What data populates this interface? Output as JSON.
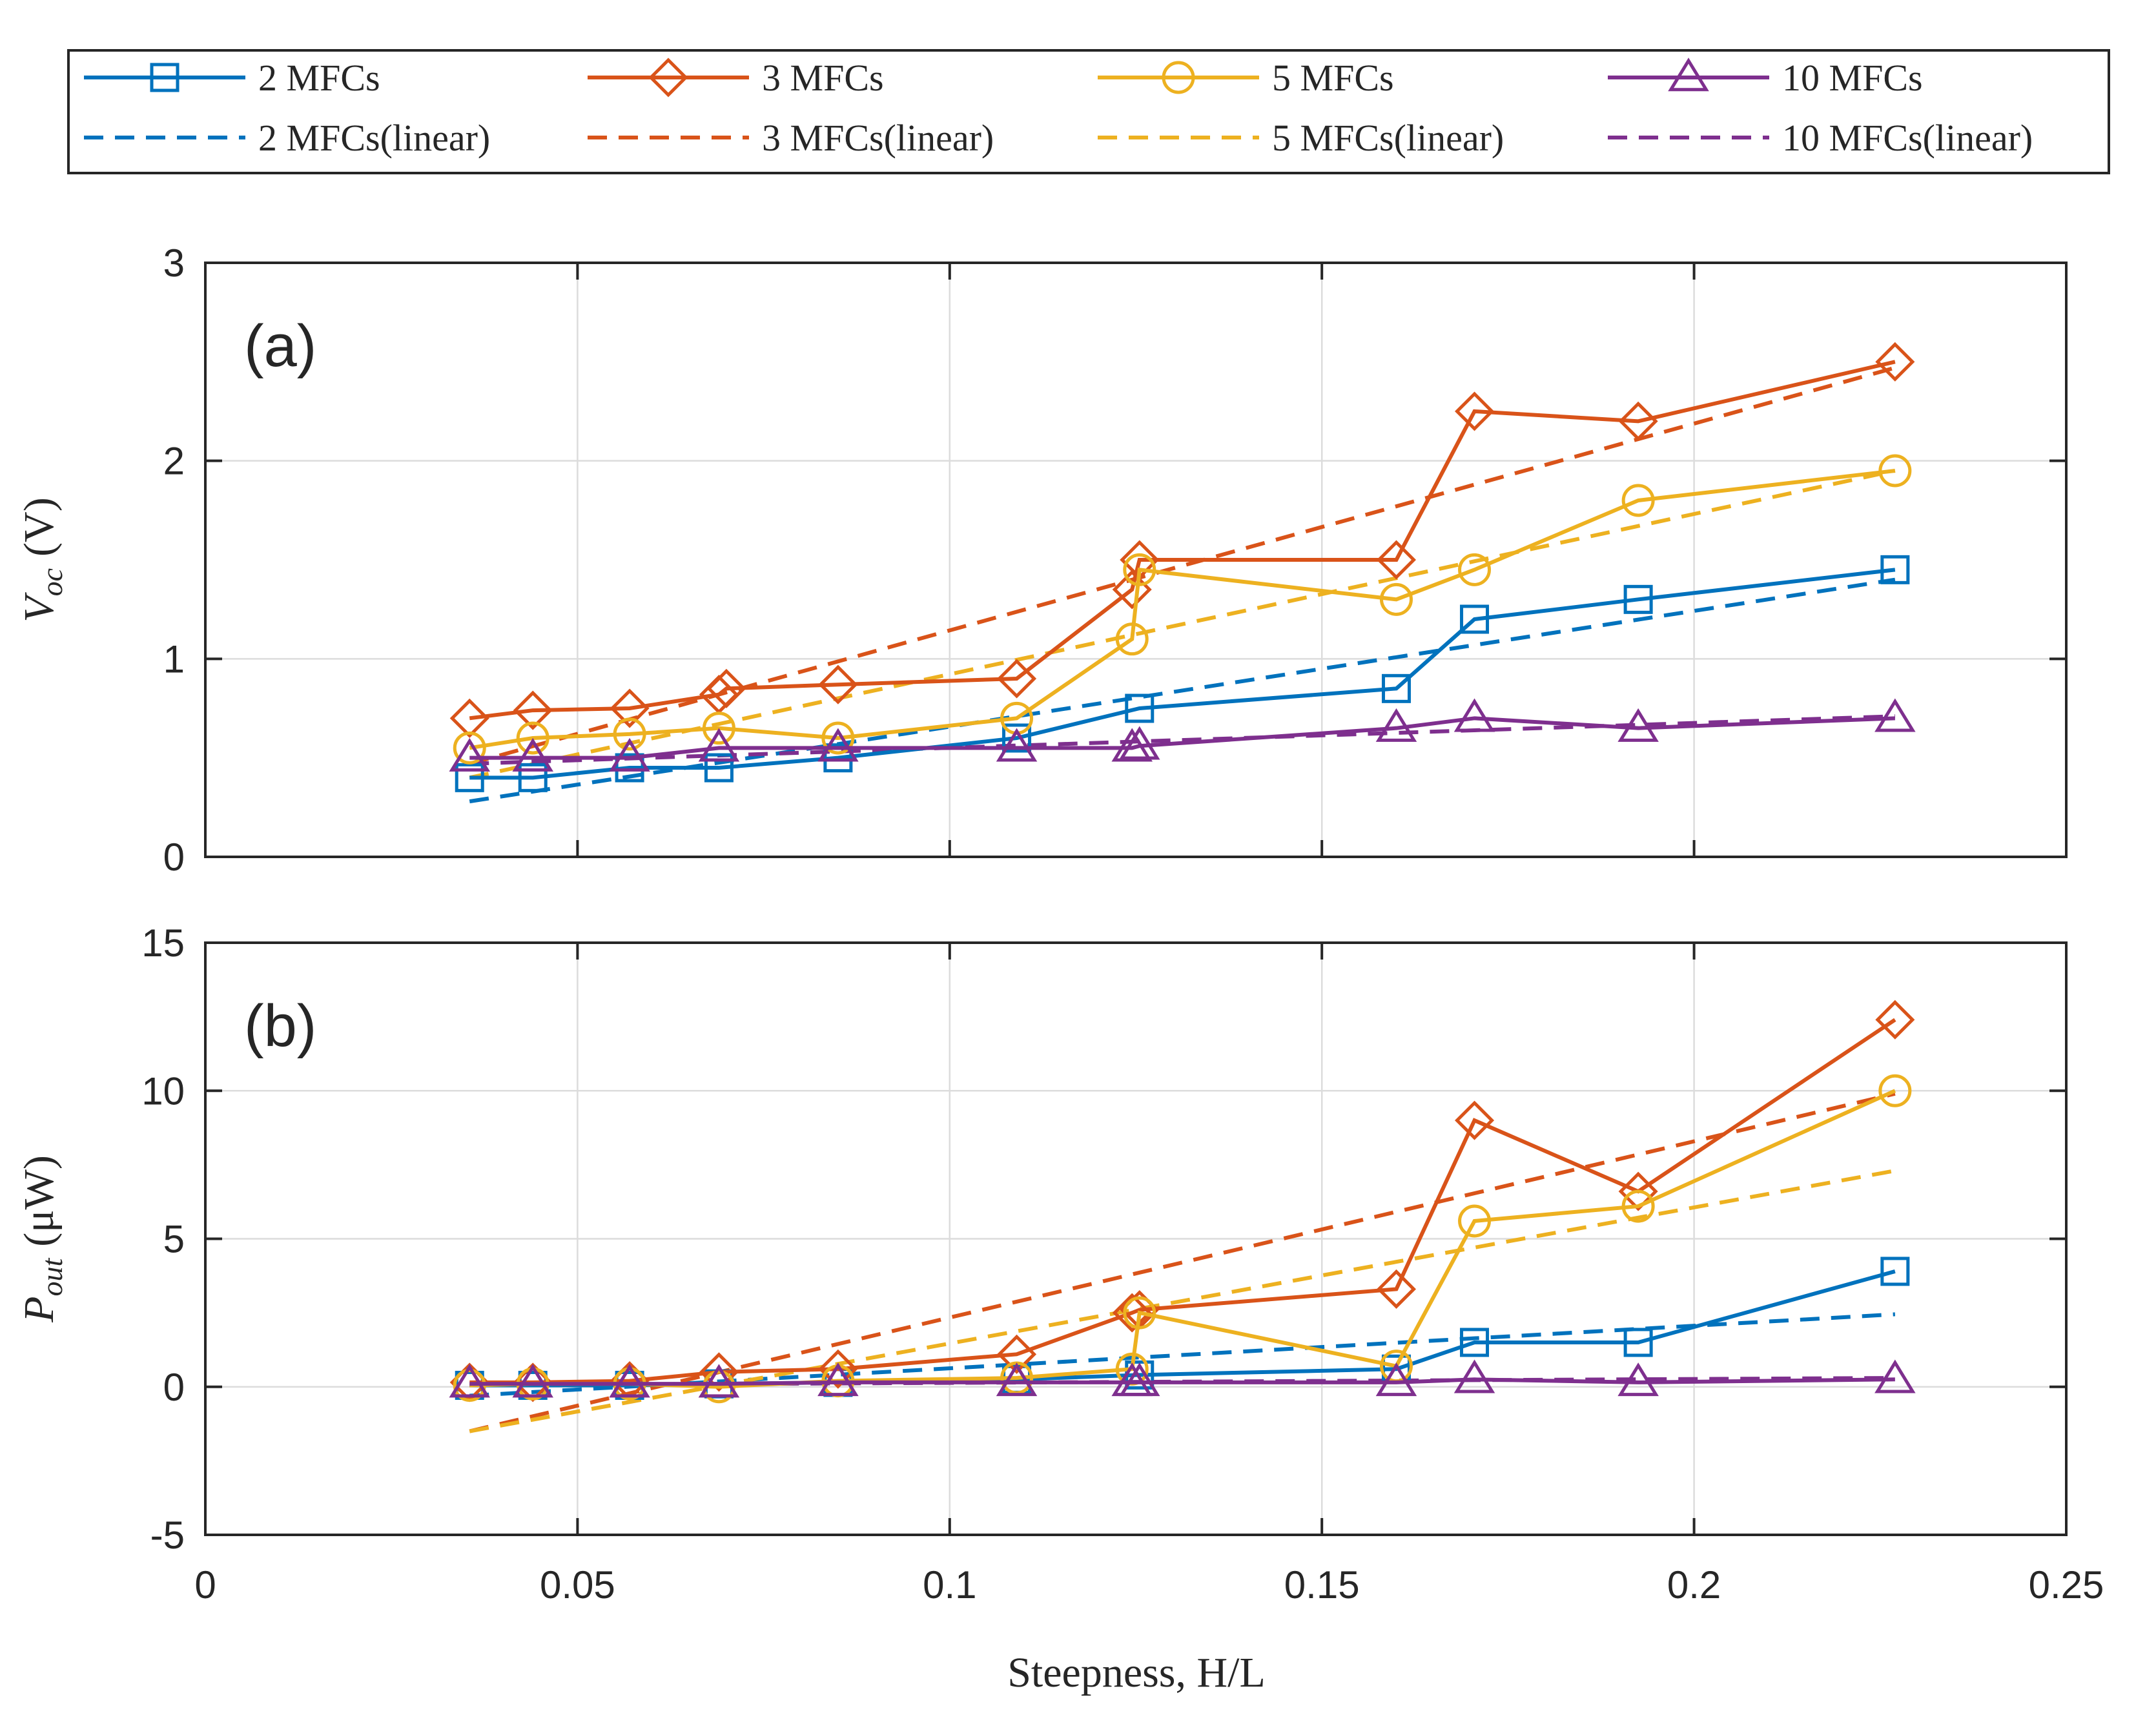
{
  "chart_data": [
    {
      "id": "a",
      "type": "line",
      "panel_label": "(a)",
      "ylabel": "V_oc (V)",
      "ylabel_main": "V",
      "ylabel_sub": "oc",
      "ylabel_unit": "(V)",
      "xlabel": "",
      "xlim": [
        0,
        0.25
      ],
      "ylim": [
        0,
        3
      ],
      "yticks": [
        0,
        1,
        2,
        3
      ],
      "ytick_labels": [
        "0",
        "1",
        "2",
        "3"
      ],
      "grid": true,
      "series": [
        {
          "name": "2 MFCs",
          "color": "#0072BD",
          "marker": "square",
          "x": [
            0.0355,
            0.044,
            0.057,
            0.069,
            0.085,
            0.109,
            0.1255,
            0.16,
            0.1705,
            0.1925,
            0.227
          ],
          "y": [
            0.4,
            0.4,
            0.45,
            0.45,
            0.5,
            0.6,
            0.75,
            0.85,
            1.2,
            1.3,
            1.45
          ]
        },
        {
          "name": "3 MFCs",
          "color": "#D95319",
          "marker": "diamond",
          "x": [
            0.0355,
            0.044,
            0.057,
            0.069,
            0.07,
            0.085,
            0.109,
            0.1245,
            0.1255,
            0.16,
            0.1705,
            0.1925,
            0.227
          ],
          "y": [
            0.7,
            0.74,
            0.75,
            0.82,
            0.85,
            0.87,
            0.9,
            1.35,
            1.5,
            1.5,
            2.25,
            2.2,
            2.5
          ]
        },
        {
          "name": "5 MFCs",
          "color": "#EDB120",
          "marker": "circle",
          "x": [
            0.0355,
            0.044,
            0.057,
            0.069,
            0.085,
            0.109,
            0.1245,
            0.1255,
            0.16,
            0.1705,
            0.1925,
            0.227
          ],
          "y": [
            0.55,
            0.6,
            0.62,
            0.65,
            0.6,
            0.7,
            1.1,
            1.45,
            1.3,
            1.45,
            1.8,
            1.95
          ]
        },
        {
          "name": "10 MFCs",
          "color": "#7E2F8E",
          "marker": "triangle",
          "x": [
            0.0355,
            0.044,
            0.057,
            0.069,
            0.085,
            0.109,
            0.1245,
            0.1255,
            0.16,
            0.1705,
            0.1925,
            0.227
          ],
          "y": [
            0.5,
            0.5,
            0.5,
            0.55,
            0.55,
            0.55,
            0.55,
            0.56,
            0.65,
            0.7,
            0.65,
            0.7
          ]
        }
      ],
      "linear": [
        {
          "name": "2 MFCs(linear)",
          "color": "#0072BD",
          "x": [
            0.0355,
            0.227
          ],
          "y": [
            0.28,
            1.4
          ]
        },
        {
          "name": "3 MFCs(linear)",
          "color": "#D95319",
          "x": [
            0.0355,
            0.227
          ],
          "y": [
            0.47,
            2.47
          ]
        },
        {
          "name": "5 MFCs(linear)",
          "color": "#EDB120",
          "x": [
            0.0355,
            0.227
          ],
          "y": [
            0.4,
            1.95
          ]
        },
        {
          "name": "10 MFCs(linear)",
          "color": "#7E2F8E",
          "x": [
            0.0355,
            0.227
          ],
          "y": [
            0.47,
            0.71
          ]
        }
      ]
    },
    {
      "id": "b",
      "type": "line",
      "panel_label": "(b)",
      "ylabel": "P_out (μW)",
      "ylabel_main": "P",
      "ylabel_sub": "out",
      "ylabel_unit": "(μW)",
      "xlabel": "Steepness, H/L",
      "xlim": [
        0,
        0.25
      ],
      "ylim": [
        -5,
        15
      ],
      "yticks": [
        -5,
        0,
        5,
        10,
        15
      ],
      "ytick_labels": [
        "-5",
        "0",
        "5",
        "10",
        "15"
      ],
      "xticks": [
        0,
        0.05,
        0.1,
        0.15,
        0.2,
        0.25
      ],
      "xtick_labels": [
        "0",
        "0.05",
        "0.1",
        "0.15",
        "0.2",
        "0.25"
      ],
      "grid": true,
      "series": [
        {
          "name": "2 MFCs",
          "color": "#0072BD",
          "marker": "square",
          "x": [
            0.0355,
            0.044,
            0.057,
            0.069,
            0.085,
            0.109,
            0.1255,
            0.16,
            0.1705,
            0.1925,
            0.227
          ],
          "y": [
            0.05,
            0.05,
            0.05,
            0.1,
            0.15,
            0.25,
            0.4,
            0.6,
            1.5,
            1.5,
            3.9
          ]
        },
        {
          "name": "3 MFCs",
          "color": "#D95319",
          "marker": "diamond",
          "x": [
            0.0355,
            0.044,
            0.057,
            0.069,
            0.085,
            0.109,
            0.1245,
            0.1255,
            0.16,
            0.1705,
            0.1925,
            0.227
          ],
          "y": [
            0.15,
            0.15,
            0.2,
            0.5,
            0.6,
            1.1,
            2.5,
            2.6,
            3.3,
            9.0,
            6.6,
            12.4
          ]
        },
        {
          "name": "5 MFCs",
          "color": "#EDB120",
          "marker": "circle",
          "x": [
            0.0355,
            0.044,
            0.057,
            0.069,
            0.085,
            0.109,
            0.1245,
            0.1255,
            0.16,
            0.1705,
            0.1925,
            0.227
          ],
          "y": [
            0.05,
            0.1,
            0.1,
            0.0,
            0.2,
            0.3,
            0.6,
            2.5,
            0.7,
            5.6,
            6.1,
            10.0
          ]
        },
        {
          "name": "10 MFCs",
          "color": "#7E2F8E",
          "marker": "triangle",
          "x": [
            0.0355,
            0.044,
            0.057,
            0.069,
            0.085,
            0.109,
            0.1245,
            0.1255,
            0.16,
            0.1705,
            0.1925,
            0.227
          ],
          "y": [
            0.1,
            0.1,
            0.1,
            0.1,
            0.15,
            0.15,
            0.15,
            0.15,
            0.15,
            0.25,
            0.15,
            0.25
          ]
        }
      ],
      "linear": [
        {
          "name": "2 MFCs(linear)",
          "color": "#0072BD",
          "x": [
            0.0355,
            0.227
          ],
          "y": [
            -0.3,
            2.45
          ]
        },
        {
          "name": "3 MFCs(linear)",
          "color": "#D95319",
          "x": [
            0.0355,
            0.227
          ],
          "y": [
            -1.5,
            9.9
          ]
        },
        {
          "name": "5 MFCs(linear)",
          "color": "#EDB120",
          "x": [
            0.0355,
            0.227
          ],
          "y": [
            -1.5,
            7.3
          ]
        },
        {
          "name": "10 MFCs(linear)",
          "color": "#7E2F8E",
          "x": [
            0.0355,
            0.227
          ],
          "y": [
            0.05,
            0.3
          ]
        }
      ]
    }
  ],
  "legend": {
    "placement": "top",
    "entries": [
      {
        "label": "2 MFCs",
        "color": "#0072BD",
        "marker": "square",
        "style": "solid"
      },
      {
        "label": "3 MFCs",
        "color": "#D95319",
        "marker": "diamond",
        "style": "solid"
      },
      {
        "label": "5 MFCs",
        "color": "#EDB120",
        "marker": "circle",
        "style": "solid"
      },
      {
        "label": "10 MFCs",
        "color": "#7E2F8E",
        "marker": "triangle",
        "style": "solid"
      },
      {
        "label": "2 MFCs(linear)",
        "color": "#0072BD",
        "marker": "none",
        "style": "dashed"
      },
      {
        "label": "3 MFCs(linear)",
        "color": "#D95319",
        "marker": "none",
        "style": "dashed"
      },
      {
        "label": "5 MFCs(linear)",
        "color": "#EDB120",
        "marker": "none",
        "style": "dashed"
      },
      {
        "label": "10 MFCs(linear)",
        "color": "#7E2F8E",
        "marker": "none",
        "style": "dashed"
      }
    ]
  }
}
